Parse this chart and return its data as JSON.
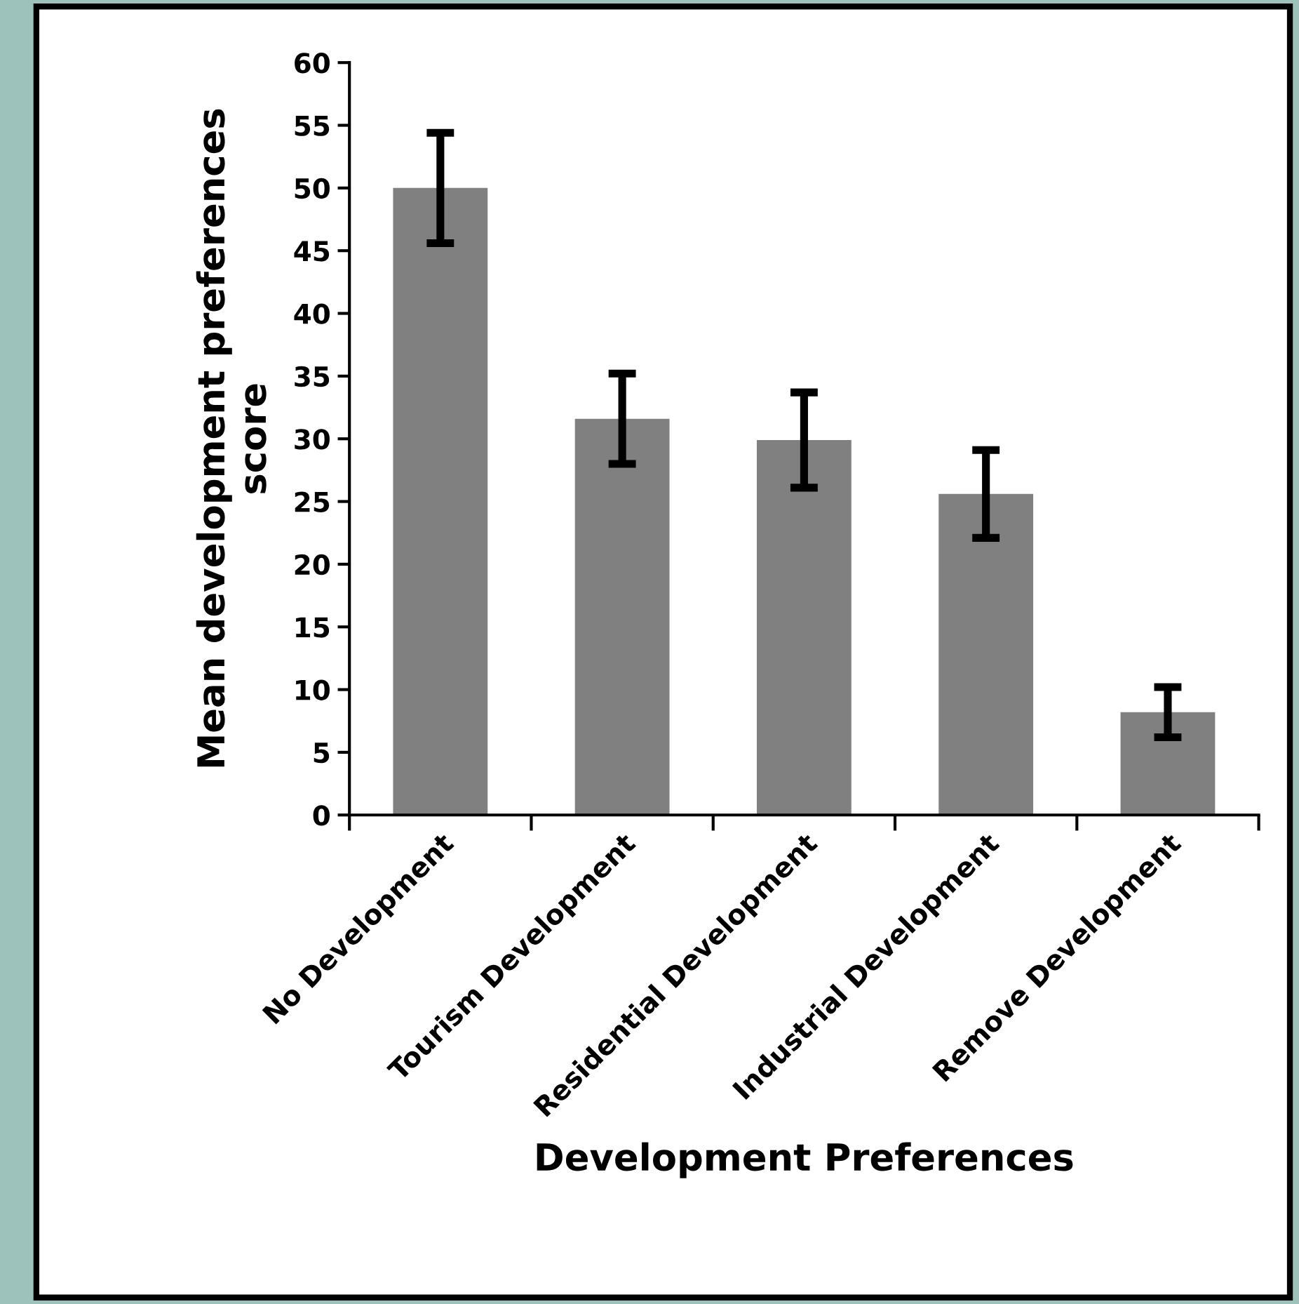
{
  "chart_data": {
    "type": "bar",
    "categories": [
      "No Development",
      "Tourism Development",
      "Residential Development",
      "Industrial Development",
      "Remove Development"
    ],
    "values": [
      50,
      31.6,
      29.9,
      25.6,
      8.2
    ],
    "errors": [
      4.4,
      3.6,
      3.8,
      3.5,
      2.0
    ],
    "color": "#808080",
    "xlabel": "Development Preferences",
    "ylabel": "Mean development preferences\nscore",
    "ylim": [
      0,
      60
    ],
    "yticks": [
      0,
      5,
      10,
      15,
      20,
      25,
      30,
      35,
      40,
      45,
      50,
      55,
      60
    ],
    "grid": false,
    "legend": false
  }
}
